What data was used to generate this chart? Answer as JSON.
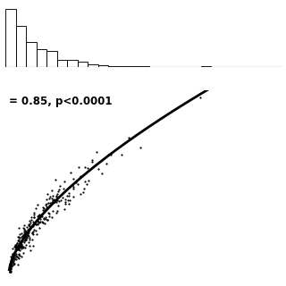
{
  "annotation_text": "= 0.85, p<0.0001",
  "annotation_fontsize": 8.5,
  "hist_color": "white",
  "hist_edge_color": "black",
  "scatter_color": "black",
  "scatter_size": 2.5,
  "line_color": "black",
  "line_width": 2.0,
  "background_color": "white",
  "num_points": 320,
  "random_seed": 7
}
